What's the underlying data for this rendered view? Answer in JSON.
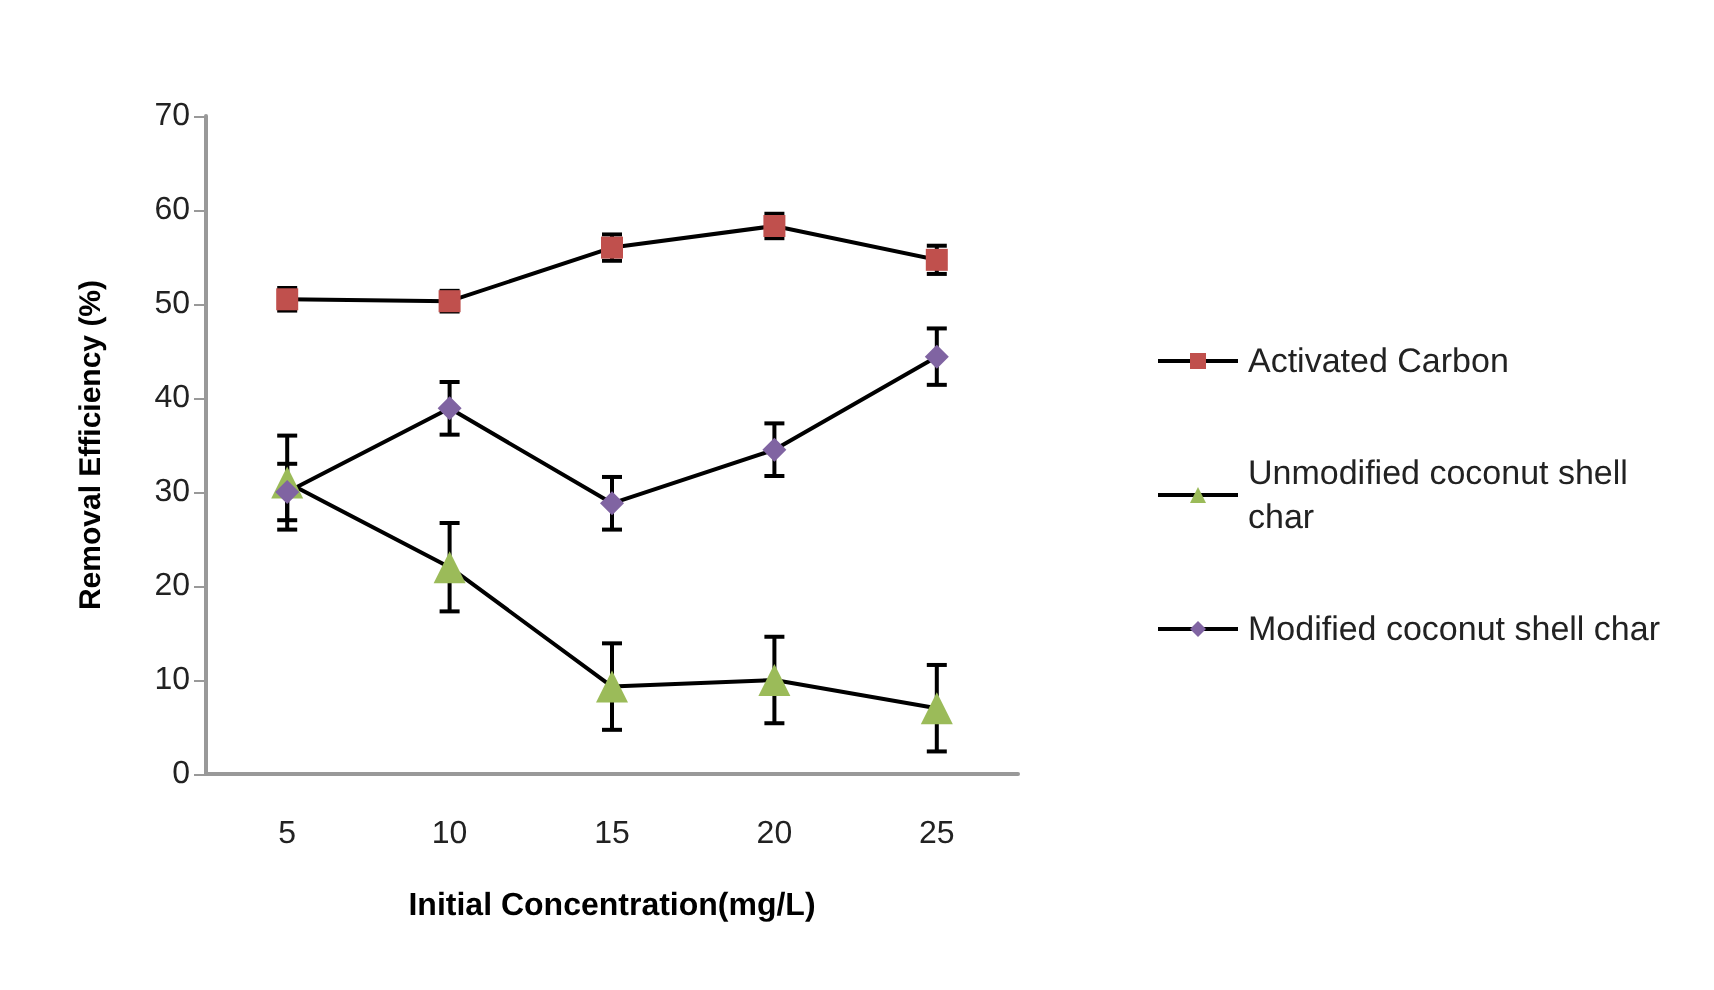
{
  "chart_data": {
    "type": "line",
    "xlabel": "Initial Concentration(mg/L)",
    "ylabel": "Removal Efficiency (%)",
    "categories": [
      "5",
      "10",
      "15",
      "20",
      "25"
    ],
    "ylim": [
      0,
      70
    ],
    "yticks": [
      0,
      10,
      20,
      30,
      40,
      50,
      60,
      70
    ],
    "grid": false,
    "legend": "right",
    "line_style": "solid",
    "series": [
      {
        "name": "Activated Carbon",
        "color": "#c0504d",
        "marker": "square",
        "values": [
          50.5,
          50.3,
          56,
          58.3,
          54.7
        ],
        "errors": [
          1.2,
          1.1,
          1.4,
          1.3,
          1.5
        ]
      },
      {
        "name": "Unmodified coconut shell char",
        "color": "#9bbb59",
        "marker": "triangle",
        "values": [
          31,
          22,
          9.3,
          10,
          7
        ],
        "errors": [
          5,
          4.7,
          4.6,
          4.6,
          4.6
        ]
      },
      {
        "name": "Modified coconut shell char",
        "color": "#8064a2",
        "marker": "diamond",
        "values": [
          30,
          38.9,
          28.8,
          34.5,
          44.4
        ],
        "errors": [
          3,
          2.8,
          2.8,
          2.8,
          3
        ]
      }
    ]
  }
}
